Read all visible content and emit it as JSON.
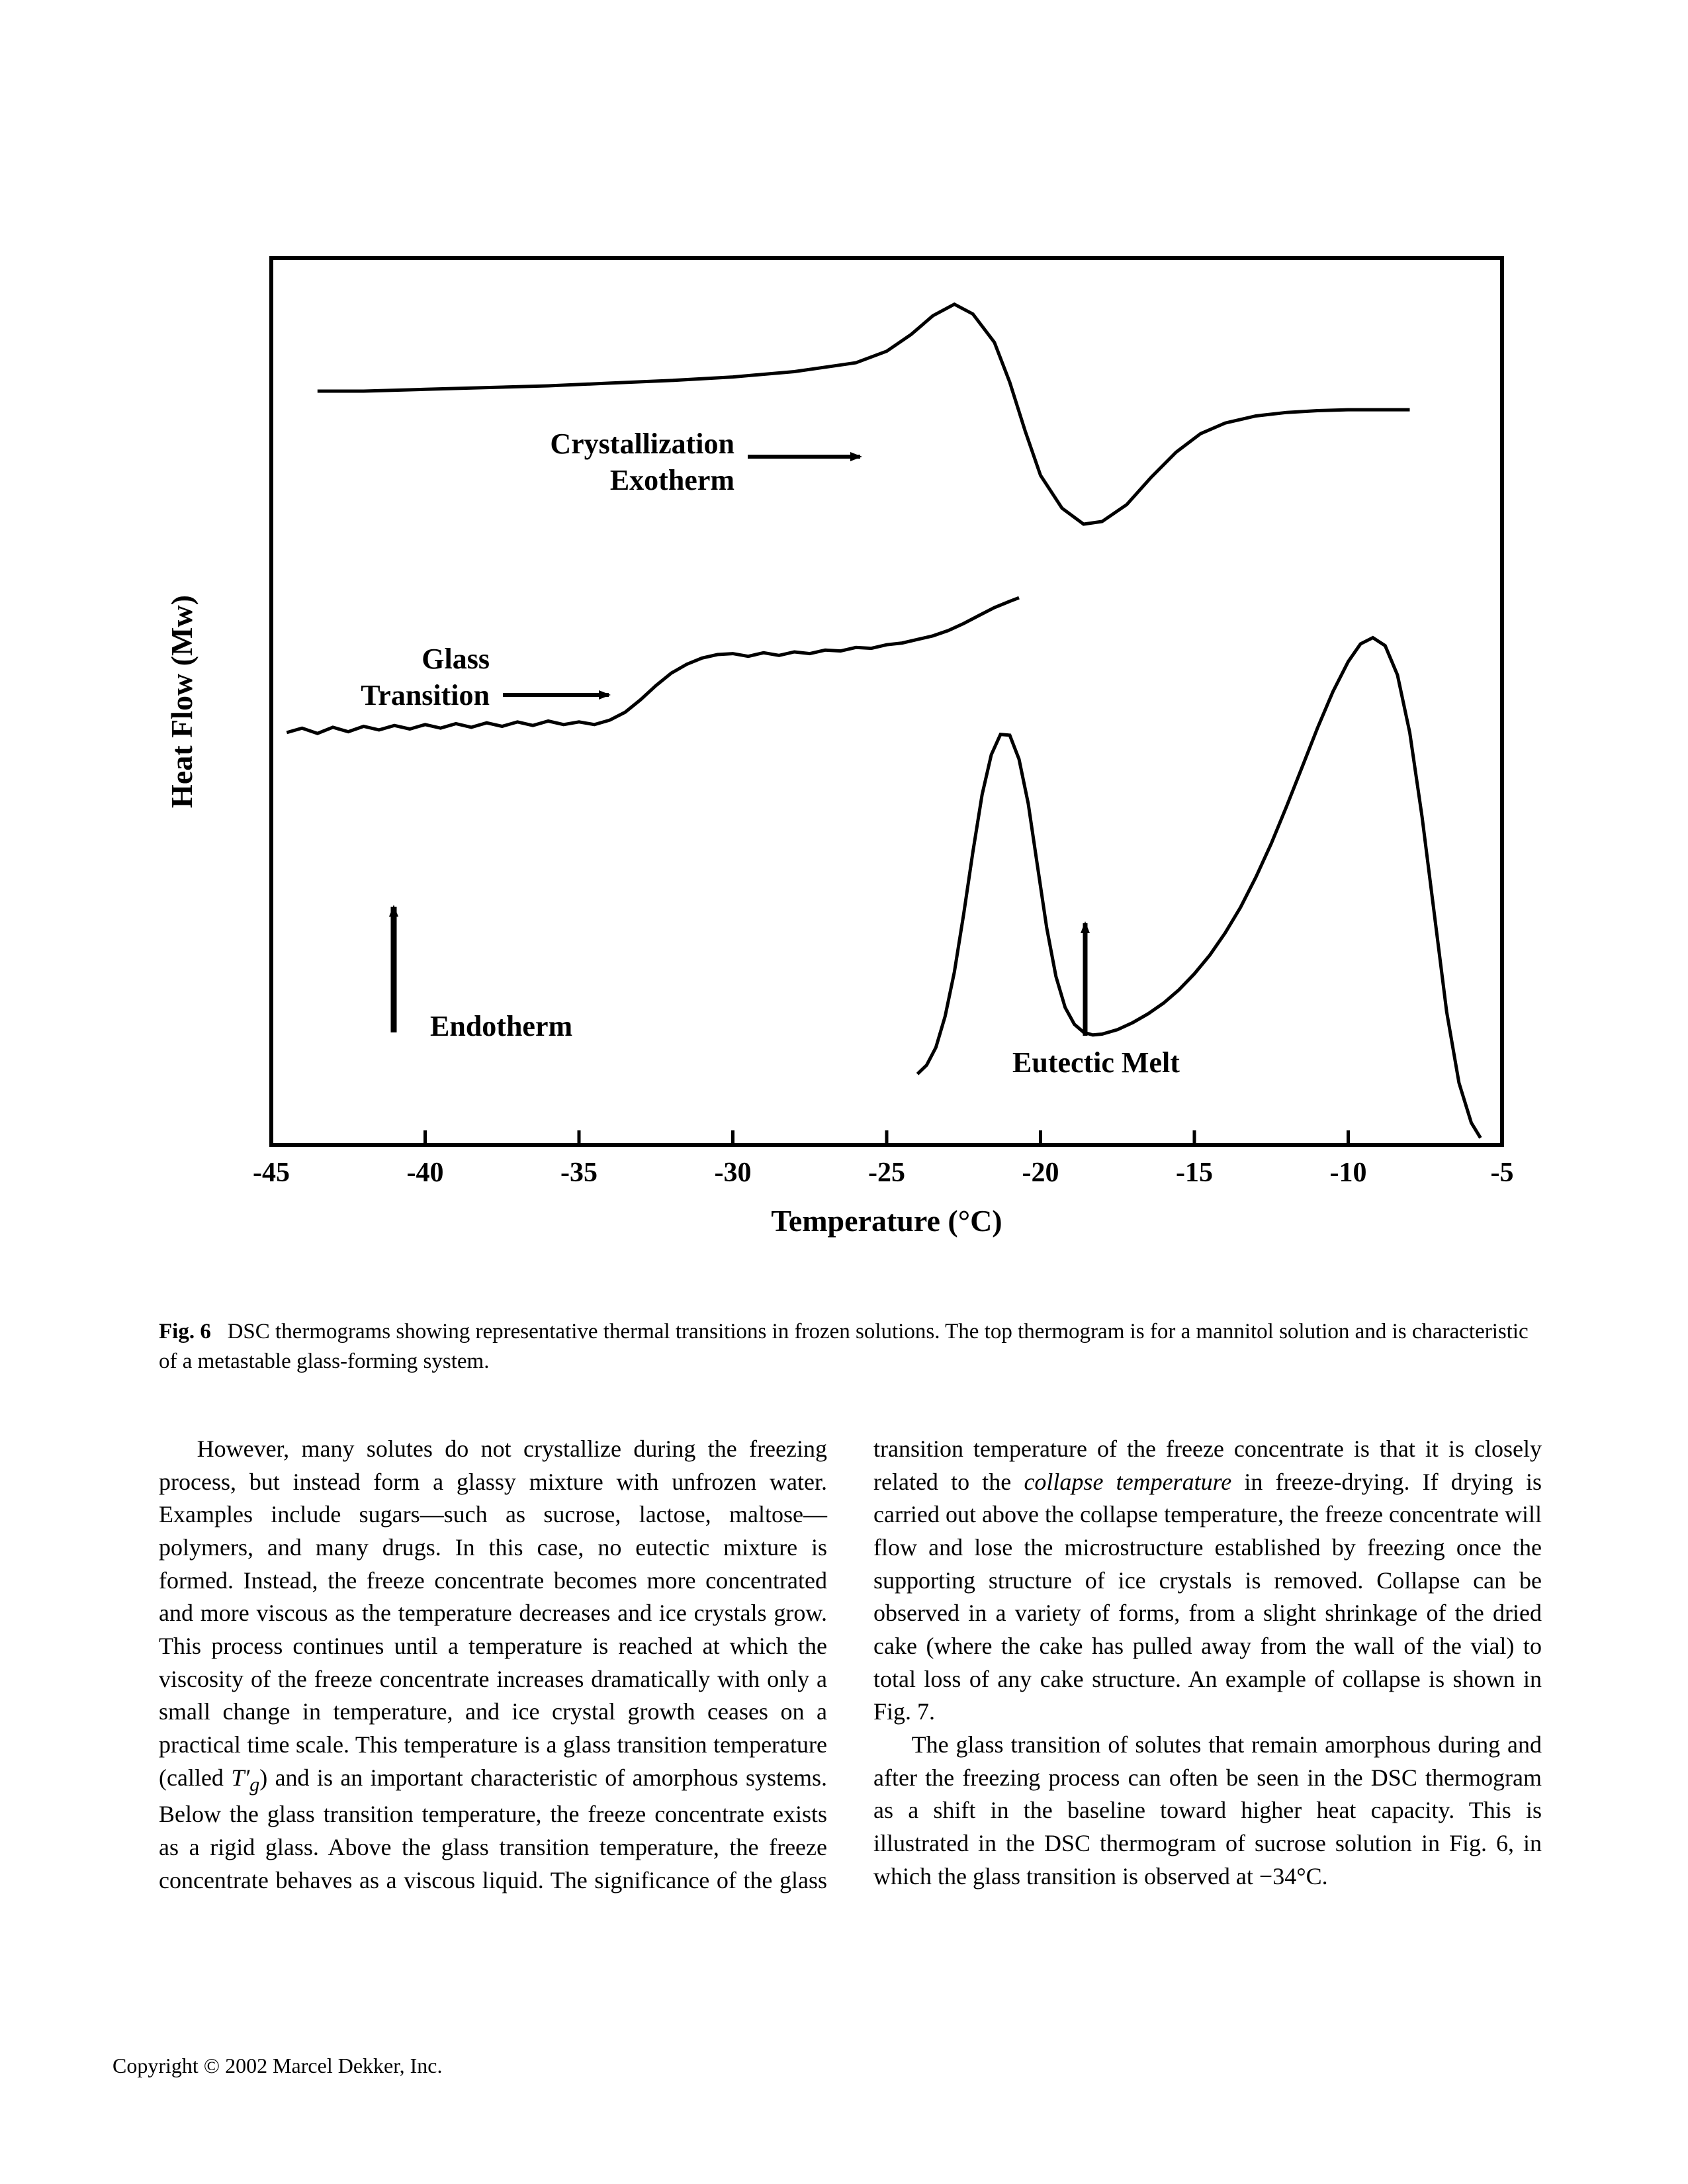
{
  "figure": {
    "type": "line",
    "background_color": "#ffffff",
    "axis_color": "#000000",
    "line_color": "#000000",
    "line_width": 5,
    "frame_width": 6,
    "xlabel": "Temperature (°C)",
    "ylabel": "Heat Flow (Mw)",
    "label_fontsize": 46,
    "xlim": [
      -45,
      -5
    ],
    "ylim": [
      0,
      100
    ],
    "xticks": [
      -45,
      -40,
      -35,
      -30,
      -25,
      -20,
      -15,
      -10,
      -5
    ],
    "tick_fontsize": 42,
    "tick_len_major": 22,
    "series": {
      "top_thermogram": {
        "description": "mannitol solution metastable glass-forming system",
        "points": [
          [
            -43.5,
            85
          ],
          [
            -42,
            85
          ],
          [
            -40,
            85.2
          ],
          [
            -38,
            85.4
          ],
          [
            -36,
            85.6
          ],
          [
            -34,
            85.9
          ],
          [
            -32,
            86.2
          ],
          [
            -30,
            86.6
          ],
          [
            -28,
            87.2
          ],
          [
            -26,
            88.2
          ],
          [
            -25,
            89.5
          ],
          [
            -24.2,
            91.4
          ],
          [
            -23.5,
            93.5
          ],
          [
            -22.8,
            94.8
          ],
          [
            -22.2,
            93.7
          ],
          [
            -21.5,
            90.5
          ],
          [
            -21,
            86
          ],
          [
            -20.5,
            80.5
          ],
          [
            -20,
            75.5
          ],
          [
            -19.3,
            71.8
          ],
          [
            -18.6,
            70.0
          ],
          [
            -18,
            70.3
          ],
          [
            -17.2,
            72.2
          ],
          [
            -16.4,
            75.3
          ],
          [
            -15.6,
            78.1
          ],
          [
            -14.8,
            80.2
          ],
          [
            -14,
            81.4
          ],
          [
            -13,
            82.2
          ],
          [
            -12,
            82.6
          ],
          [
            -11,
            82.8
          ],
          [
            -10,
            82.9
          ],
          [
            -9,
            82.9
          ],
          [
            -8,
            82.9
          ]
        ]
      },
      "middle_thermogram": {
        "description": "sucrose-like glass transition",
        "points": [
          [
            -44.5,
            46.5
          ],
          [
            -44,
            47.0
          ],
          [
            -43.5,
            46.4
          ],
          [
            -43,
            47.1
          ],
          [
            -42.5,
            46.6
          ],
          [
            -42,
            47.2
          ],
          [
            -41.5,
            46.8
          ],
          [
            -41,
            47.3
          ],
          [
            -40.5,
            46.9
          ],
          [
            -40,
            47.4
          ],
          [
            -39.5,
            47.0
          ],
          [
            -39,
            47.5
          ],
          [
            -38.5,
            47.1
          ],
          [
            -38,
            47.6
          ],
          [
            -37.5,
            47.2
          ],
          [
            -37,
            47.7
          ],
          [
            -36.5,
            47.3
          ],
          [
            -36,
            47.8
          ],
          [
            -35.5,
            47.4
          ],
          [
            -35,
            47.7
          ],
          [
            -34.5,
            47.4
          ],
          [
            -34,
            47.9
          ],
          [
            -33.5,
            48.8
          ],
          [
            -33,
            50.2
          ],
          [
            -32.5,
            51.8
          ],
          [
            -32,
            53.2
          ],
          [
            -31.5,
            54.2
          ],
          [
            -31,
            54.9
          ],
          [
            -30.5,
            55.3
          ],
          [
            -30,
            55.4
          ],
          [
            -29.5,
            55.1
          ],
          [
            -29,
            55.5
          ],
          [
            -28.5,
            55.2
          ],
          [
            -28,
            55.6
          ],
          [
            -27.5,
            55.4
          ],
          [
            -27,
            55.8
          ],
          [
            -26.5,
            55.7
          ],
          [
            -26,
            56.1
          ],
          [
            -25.5,
            56.0
          ],
          [
            -25,
            56.4
          ],
          [
            -24.5,
            56.6
          ],
          [
            -24,
            57.0
          ],
          [
            -23.5,
            57.4
          ],
          [
            -23,
            58.0
          ],
          [
            -22.5,
            58.8
          ],
          [
            -22,
            59.7
          ],
          [
            -21.5,
            60.6
          ],
          [
            -21,
            61.3
          ],
          [
            -20.7,
            61.7
          ]
        ]
      },
      "bottom_thermogram": {
        "description": "eutectic melt",
        "points": [
          [
            -24,
            8
          ],
          [
            -23.7,
            9
          ],
          [
            -23.4,
            11
          ],
          [
            -23.1,
            14.5
          ],
          [
            -22.8,
            19.5
          ],
          [
            -22.5,
            26
          ],
          [
            -22.2,
            33
          ],
          [
            -21.9,
            39.5
          ],
          [
            -21.6,
            44
          ],
          [
            -21.3,
            46.3
          ],
          [
            -21.0,
            46.2
          ],
          [
            -20.7,
            43.5
          ],
          [
            -20.4,
            38.5
          ],
          [
            -20.1,
            31.5
          ],
          [
            -19.8,
            24.5
          ],
          [
            -19.5,
            19
          ],
          [
            -19.2,
            15.5
          ],
          [
            -18.9,
            13.6
          ],
          [
            -18.6,
            12.7
          ],
          [
            -18.3,
            12.4
          ],
          [
            -18,
            12.5
          ],
          [
            -17.5,
            13.0
          ],
          [
            -17,
            13.8
          ],
          [
            -16.5,
            14.8
          ],
          [
            -16,
            16.0
          ],
          [
            -15.5,
            17.5
          ],
          [
            -15,
            19.3
          ],
          [
            -14.5,
            21.4
          ],
          [
            -14,
            23.9
          ],
          [
            -13.5,
            26.8
          ],
          [
            -13,
            30.2
          ],
          [
            -12.5,
            34.0
          ],
          [
            -12,
            38.2
          ],
          [
            -11.5,
            42.6
          ],
          [
            -11,
            47.0
          ],
          [
            -10.5,
            51.1
          ],
          [
            -10,
            54.5
          ],
          [
            -9.6,
            56.5
          ],
          [
            -9.2,
            57.2
          ],
          [
            -8.8,
            56.3
          ],
          [
            -8.4,
            53.0
          ],
          [
            -8.0,
            46.5
          ],
          [
            -7.6,
            37
          ],
          [
            -7.2,
            26
          ],
          [
            -6.8,
            15
          ],
          [
            -6.4,
            7
          ],
          [
            -6.0,
            2.5
          ],
          [
            -5.7,
            0.8
          ]
        ]
      }
    },
    "annotations": {
      "crystallization": {
        "line1": "Crystallization",
        "line2": "Exotherm"
      },
      "glass_transition": {
        "line1": "Glass",
        "line2": "Transition"
      },
      "endotherm": "Endotherm",
      "eutectic_melt": "Eutectic Melt"
    }
  },
  "caption": {
    "label": "Fig. 6",
    "text": "DSC thermograms showing representative thermal transitions in frozen solutions. The top thermogram is for a mannitol solution and is characteristic of a metastable glass-forming system."
  },
  "body": {
    "p1a": "However, many solutes do not crystallize during the freezing process, but instead form a glassy mixture with unfrozen water. Examples include sugars—such as sucrose, lactose, maltose—polymers, and many drugs. In this case, no eutectic mixture is formed. Instead, the freeze concentrate becomes more concentrated and more viscous as the temperature decreases and ice crystals grow. This process continues until a temperature is reached at which the viscosity of the freeze concentrate increases dramatically with only a small change in temperature, and ice crystal growth ceases on a practical time scale. This temperature is a glass transition temperature (called ",
    "p1_sym": "T′g",
    "p1b": ") and is an important characteristic of amorphous systems. Below the glass transition temperature, the freeze concentrate exists as a rigid glass. Above the glass transition temperature, the freeze concentrate behaves as a viscous liquid. The significance of the glass transition temperature of the freeze concentrate is that it is closely related to the ",
    "p1_ital": "collapse temperature",
    "p1c": " in freeze-drying. If drying is carried out above the collapse temperature, the freeze concentrate will flow and lose the microstructure established by freezing once the supporting structure of ice crystals is removed. Collapse can be observed in a variety of forms, from a slight shrinkage of the dried cake (where the cake has pulled away from the wall of the vial) to total loss of any cake structure. An example of collapse is shown in Fig. 7.",
    "p2": "The glass transition of solutes that remain amorphous during and after the freezing process can often be seen in the DSC thermogram as a shift in the baseline toward higher heat capacity. This is illustrated in the DSC thermogram of sucrose solution in Fig. 6, in which the glass transition is observed at −34°C."
  },
  "copyright": "Copyright © 2002 Marcel Dekker, Inc."
}
